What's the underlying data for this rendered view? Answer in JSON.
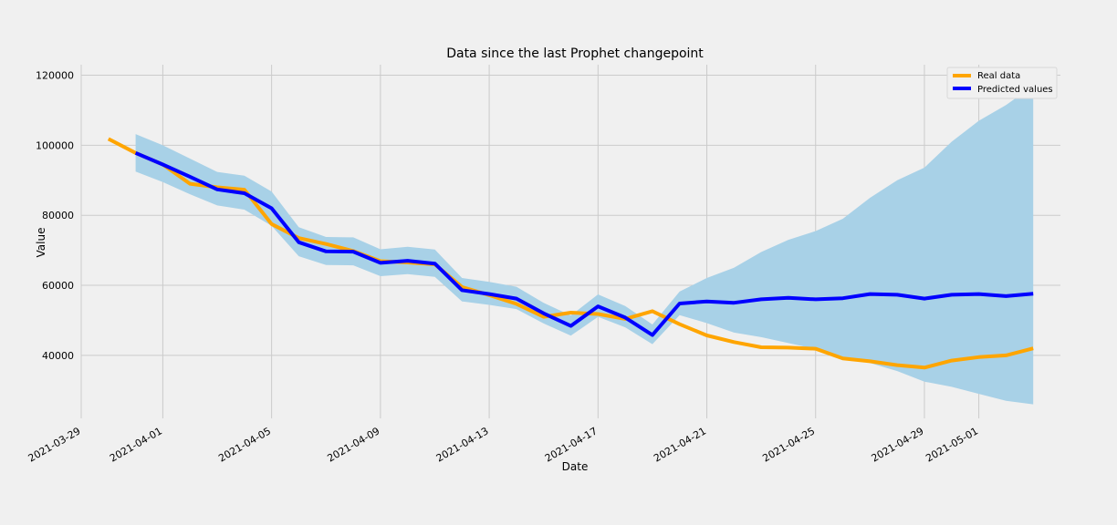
{
  "chart_data": {
    "type": "line",
    "title": "Data since the last Prophet changepoint",
    "xlabel": "Date",
    "ylabel": "Value",
    "x_ticks": [
      "2021-03-29",
      "2021-04-01",
      "2021-04-05",
      "2021-04-09",
      "2021-04-13",
      "2021-04-17",
      "2021-04-21",
      "2021-04-25",
      "2021-04-29",
      "2021-05-01"
    ],
    "y_ticks": [
      40000,
      60000,
      80000,
      100000,
      120000
    ],
    "xlim": [
      "2021-03-29",
      "2021-05-04"
    ],
    "ylim": [
      22000,
      123000
    ],
    "grid": true,
    "legend_position": "top-right",
    "colors": {
      "real": "#ffa500",
      "predicted": "#0000ff",
      "band": "#a8d1e7",
      "grid": "#cbcbcb",
      "background": "#f0f0f0"
    },
    "series": [
      {
        "name": "Real data",
        "points": [
          [
            "2021-03-30",
            101800
          ],
          [
            "2021-03-31",
            97800
          ],
          [
            "2021-04-01",
            94500
          ],
          [
            "2021-04-02",
            89000
          ],
          [
            "2021-04-03",
            88000
          ],
          [
            "2021-04-04",
            87300
          ],
          [
            "2021-04-05",
            77500
          ],
          [
            "2021-04-06",
            73500
          ],
          [
            "2021-04-07",
            71800
          ],
          [
            "2021-04-08",
            69800
          ],
          [
            "2021-04-09",
            66900
          ],
          [
            "2021-04-10",
            66500
          ],
          [
            "2021-04-11",
            66000
          ],
          [
            "2021-04-12",
            59500
          ],
          [
            "2021-04-13",
            57200
          ],
          [
            "2021-04-14",
            54700
          ],
          [
            "2021-04-15",
            51000
          ],
          [
            "2021-04-16",
            52200
          ],
          [
            "2021-04-17",
            51800
          ],
          [
            "2021-04-18",
            50400
          ],
          [
            "2021-04-19",
            52600
          ],
          [
            "2021-04-20",
            48900
          ],
          [
            "2021-04-21",
            45700
          ],
          [
            "2021-04-22",
            43800
          ],
          [
            "2021-04-23",
            42300
          ],
          [
            "2021-04-24",
            42200
          ],
          [
            "2021-04-25",
            41900
          ],
          [
            "2021-04-26",
            39100
          ],
          [
            "2021-04-27",
            38300
          ],
          [
            "2021-04-28",
            37200
          ],
          [
            "2021-04-29",
            36500
          ],
          [
            "2021-04-30",
            38500
          ],
          [
            "2021-05-01",
            39500
          ],
          [
            "2021-05-02",
            40000
          ],
          [
            "2021-05-03",
            42000
          ]
        ]
      },
      {
        "name": "Predicted values",
        "points": [
          [
            "2021-03-31",
            97800
          ],
          [
            "2021-04-01",
            94500
          ],
          [
            "2021-04-02",
            91000
          ],
          [
            "2021-04-03",
            87400
          ],
          [
            "2021-04-04",
            86300
          ],
          [
            "2021-04-05",
            82000
          ],
          [
            "2021-04-06",
            72300
          ],
          [
            "2021-04-07",
            69700
          ],
          [
            "2021-04-08",
            69600
          ],
          [
            "2021-04-09",
            66400
          ],
          [
            "2021-04-10",
            67000
          ],
          [
            "2021-04-11",
            66200
          ],
          [
            "2021-04-12",
            58600
          ],
          [
            "2021-04-13",
            57500
          ],
          [
            "2021-04-14",
            56200
          ],
          [
            "2021-04-15",
            52000
          ],
          [
            "2021-04-16",
            48400
          ],
          [
            "2021-04-17",
            54000
          ],
          [
            "2021-04-18",
            50800
          ],
          [
            "2021-04-19",
            45800
          ],
          [
            "2021-04-20",
            54800
          ],
          [
            "2021-04-21",
            55400
          ],
          [
            "2021-04-22",
            55000
          ],
          [
            "2021-04-23",
            56000
          ],
          [
            "2021-04-24",
            56400
          ],
          [
            "2021-04-25",
            56000
          ],
          [
            "2021-04-26",
            56300
          ],
          [
            "2021-04-27",
            57500
          ],
          [
            "2021-04-28",
            57300
          ],
          [
            "2021-04-29",
            56200
          ],
          [
            "2021-04-30",
            57300
          ],
          [
            "2021-05-01",
            57500
          ],
          [
            "2021-05-02",
            56900
          ],
          [
            "2021-05-03",
            57600
          ]
        ]
      }
    ],
    "confidence_band": [
      [
        "2021-03-31",
        92500,
        103200
      ],
      [
        "2021-04-01",
        89500,
        100000
      ],
      [
        "2021-04-02",
        86000,
        96200
      ],
      [
        "2021-04-03",
        82800,
        92400
      ],
      [
        "2021-04-04",
        81600,
        91300
      ],
      [
        "2021-04-05",
        77000,
        86800
      ],
      [
        "2021-04-06",
        68300,
        76600
      ],
      [
        "2021-04-07",
        65800,
        73800
      ],
      [
        "2021-04-08",
        65700,
        73700
      ],
      [
        "2021-04-09",
        62600,
        70300
      ],
      [
        "2021-04-10",
        63200,
        71000
      ],
      [
        "2021-04-11",
        62400,
        70200
      ],
      [
        "2021-04-12",
        55400,
        62100
      ],
      [
        "2021-04-13",
        54400,
        61000
      ],
      [
        "2021-04-14",
        53200,
        59600
      ],
      [
        "2021-04-15",
        49100,
        55000
      ],
      [
        "2021-04-16",
        45600,
        51400
      ],
      [
        "2021-04-17",
        51000,
        57400
      ],
      [
        "2021-04-18",
        48000,
        54100
      ],
      [
        "2021-04-19",
        43200,
        48800
      ],
      [
        "2021-04-20",
        51500,
        58200
      ],
      [
        "2021-04-21",
        49200,
        62100
      ],
      [
        "2021-04-22",
        46500,
        65000
      ],
      [
        "2021-04-23",
        45200,
        69500
      ],
      [
        "2021-04-24",
        43500,
        73000
      ],
      [
        "2021-04-25",
        41800,
        75500
      ],
      [
        "2021-04-26",
        39500,
        79000
      ],
      [
        "2021-04-27",
        37800,
        85000
      ],
      [
        "2021-04-28",
        35500,
        90000
      ],
      [
        "2021-04-29",
        32500,
        93600
      ],
      [
        "2021-04-30",
        31000,
        101000
      ],
      [
        "2021-05-01",
        29000,
        107000
      ],
      [
        "2021-05-02",
        27000,
        111500
      ],
      [
        "2021-05-03",
        26000,
        117000
      ]
    ]
  }
}
